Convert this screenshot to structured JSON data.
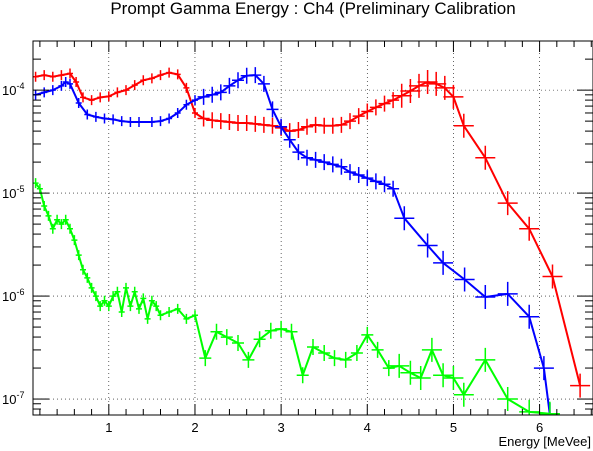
{
  "chart_data": {
    "type": "line",
    "title": "Prompt Gamma Energy : Ch4 (Preliminary Calibration",
    "xlabel": "Energy [MeVee]",
    "ylabel": "",
    "xlim": [
      0.12,
      6.62
    ],
    "ylim": [
      7e-08,
      0.0003
    ],
    "yscale": "log",
    "grid": true,
    "legend": "none",
    "xticks": [
      1,
      2,
      3,
      4,
      5,
      6
    ],
    "xtick_labels": [
      "1",
      "2",
      "3",
      "4",
      "5",
      "6"
    ],
    "yticks": [
      1e-07,
      1e-06,
      1e-05,
      0.0001
    ],
    "ytick_labels": [
      {
        "base": "10",
        "exp": "-7"
      },
      {
        "base": "10",
        "exp": "-6"
      },
      {
        "base": "10",
        "exp": "-5"
      },
      {
        "base": "10",
        "exp": "-4"
      }
    ],
    "series": [
      {
        "color": "#ff0000",
        "x": [
          0.15,
          0.25,
          0.35,
          0.45,
          0.55,
          0.62,
          0.7,
          0.8,
          0.9,
          1.0,
          1.1,
          1.2,
          1.3,
          1.4,
          1.5,
          1.6,
          1.7,
          1.8,
          1.9,
          2.0,
          2.1,
          2.2,
          2.3,
          2.4,
          2.5,
          2.6,
          2.7,
          2.8,
          2.9,
          3.0,
          3.1,
          3.2,
          3.3,
          3.4,
          3.5,
          3.6,
          3.7,
          3.8,
          3.9,
          4.0,
          4.1,
          4.2,
          4.3,
          4.4,
          4.5,
          4.6,
          4.7,
          4.8,
          4.9,
          5.0,
          5.12,
          5.37,
          5.63,
          5.88,
          6.15,
          6.47
        ],
        "y": [
          0.000135,
          0.00014,
          0.000135,
          0.00014,
          0.000145,
          0.00012,
          8.5e-05,
          8e-05,
          8.5e-05,
          8.7e-05,
          9.5e-05,
          0.0001,
          0.000112,
          0.000125,
          0.00013,
          0.00014,
          0.000148,
          0.000142,
          0.000105,
          6e-05,
          5.3e-05,
          5.1e-05,
          5e-05,
          4.9e-05,
          4.8e-05,
          4.8e-05,
          4.7e-05,
          4.6e-05,
          4.5e-05,
          4.3e-05,
          4e-05,
          4.1e-05,
          4.4e-05,
          4.6e-05,
          4.5e-05,
          4.5e-05,
          4.6e-05,
          5e-05,
          5.6e-05,
          6.2e-05,
          6.8e-05,
          7.4e-05,
          8e-05,
          8.8e-05,
          9.8e-05,
          0.00011,
          0.00012,
          0.000115,
          0.000105,
          8.6e-05,
          4.5e-05,
          2.2e-05,
          8e-06,
          4.5e-06,
          1.55e-06,
          1.35e-07
        ]
      },
      {
        "color": "#0000ff",
        "x": [
          0.15,
          0.25,
          0.35,
          0.45,
          0.5,
          0.55,
          0.65,
          0.75,
          0.85,
          0.95,
          1.05,
          1.15,
          1.25,
          1.35,
          1.5,
          1.6,
          1.7,
          1.8,
          1.9,
          2.0,
          2.1,
          2.2,
          2.3,
          2.4,
          2.5,
          2.6,
          2.7,
          2.8,
          2.9,
          3.0,
          3.1,
          3.2,
          3.3,
          3.4,
          3.5,
          3.6,
          3.7,
          3.8,
          3.9,
          4.0,
          4.1,
          4.2,
          4.3,
          4.43,
          4.7,
          4.88,
          5.13,
          5.37,
          5.63,
          5.88,
          6.05,
          6.12
        ],
        "y": [
          9e-05,
          9.5e-05,
          0.0001,
          0.00011,
          0.00012,
          0.000115,
          7.5e-05,
          5.8e-05,
          5.5e-05,
          5.3e-05,
          5.2e-05,
          5e-05,
          4.9e-05,
          4.9e-05,
          4.9e-05,
          5e-05,
          5.3e-05,
          6e-05,
          7.2e-05,
          8e-05,
          8.6e-05,
          9e-05,
          9.5e-05,
          0.00011,
          0.000125,
          0.000138,
          0.00014,
          0.000115,
          6.5e-05,
          4.4e-05,
          3.3e-05,
          2.5e-05,
          2.2e-05,
          2.1e-05,
          2e-05,
          1.9e-05,
          1.8e-05,
          1.6e-05,
          1.5e-05,
          1.4e-05,
          1.3e-05,
          1.22e-05,
          1.1e-05,
          5.7e-06,
          3.1e-06,
          2.1e-06,
          1.45e-06,
          9.8e-07,
          1.05e-06,
          6.3e-07,
          2e-07,
          7e-08
        ]
      },
      {
        "color": "#00ff00",
        "x": [
          0.15,
          0.2,
          0.25,
          0.3,
          0.35,
          0.4,
          0.45,
          0.5,
          0.55,
          0.6,
          0.65,
          0.7,
          0.75,
          0.8,
          0.85,
          0.9,
          0.95,
          1.0,
          1.05,
          1.1,
          1.15,
          1.2,
          1.25,
          1.3,
          1.35,
          1.4,
          1.45,
          1.5,
          1.55,
          1.6,
          1.7,
          1.8,
          1.9,
          2.0,
          2.12,
          2.25,
          2.37,
          2.5,
          2.62,
          2.75,
          2.88,
          3.0,
          3.12,
          3.25,
          3.37,
          3.5,
          3.62,
          3.75,
          3.88,
          4.0,
          4.12,
          4.25,
          4.37,
          4.5,
          4.62,
          4.75,
          4.88,
          5.0,
          5.12,
          5.37,
          5.63,
          5.88,
          6.12
        ],
        "y": [
          1.25e-05,
          1.1e-05,
          7.5e-06,
          6e-06,
          4.5e-06,
          5.5e-06,
          5e-06,
          5.5e-06,
          4.5e-06,
          3.5e-06,
          2.5e-06,
          1.8e-06,
          1.5e-06,
          1.2e-06,
          1e-06,
          8e-07,
          9e-07,
          8e-07,
          1e-06,
          1.1e-06,
          7e-07,
          1.2e-06,
          8e-07,
          1.1e-06,
          7.5e-07,
          9.5e-07,
          6e-07,
          9e-07,
          8e-07,
          6.5e-07,
          7e-07,
          7.5e-07,
          6e-07,
          6.5e-07,
          2.5e-07,
          4.5e-07,
          4e-07,
          3.5e-07,
          2.4e-07,
          3.8e-07,
          4.6e-07,
          4.8e-07,
          4.5e-07,
          1.7e-07,
          3.2e-07,
          2.8e-07,
          2.5e-07,
          2.4e-07,
          2.8e-07,
          4.2e-07,
          3e-07,
          2e-07,
          2.1e-07,
          1.8e-07,
          1.6e-07,
          3e-07,
          1.7e-07,
          1.6e-07,
          1.1e-07,
          2.4e-07,
          1e-07,
          7.5e-08,
          7.2e-08
        ]
      }
    ]
  }
}
